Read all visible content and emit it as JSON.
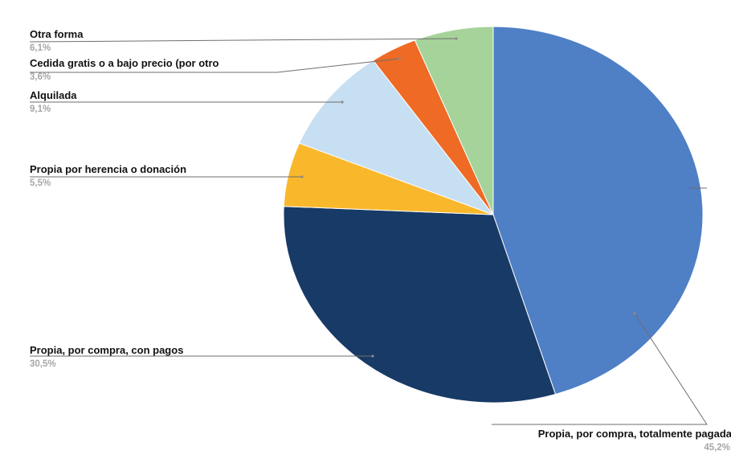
{
  "chart_data": {
    "type": "pie",
    "title": "",
    "slices": [
      {
        "label": "Propia, por compra, totalmente pagada",
        "value": 45.2,
        "value_label": "45,2%",
        "color": "#4f7fc5"
      },
      {
        "label": "Propia, por compra, con pagos",
        "value": 30.5,
        "value_label": "30,5%",
        "color": "#183a66"
      },
      {
        "label": "Propia por herencia o donación",
        "value": 5.5,
        "value_label": "5,5%",
        "color": "#f9b82c"
      },
      {
        "label": "Alquilada",
        "value": 9.1,
        "value_label": "9,1%",
        "color": "#c7dff2"
      },
      {
        "label": "Cedida gratis o a bajo precio (por otro",
        "value": 3.6,
        "value_label": "3,6%",
        "color": "#ee6a25"
      },
      {
        "label": "Otra forma",
        "value": 6.1,
        "value_label": "6,1%",
        "color": "#a6d39a"
      }
    ],
    "start_angle_deg": 0,
    "direction": "clockwise",
    "legend": "none"
  }
}
